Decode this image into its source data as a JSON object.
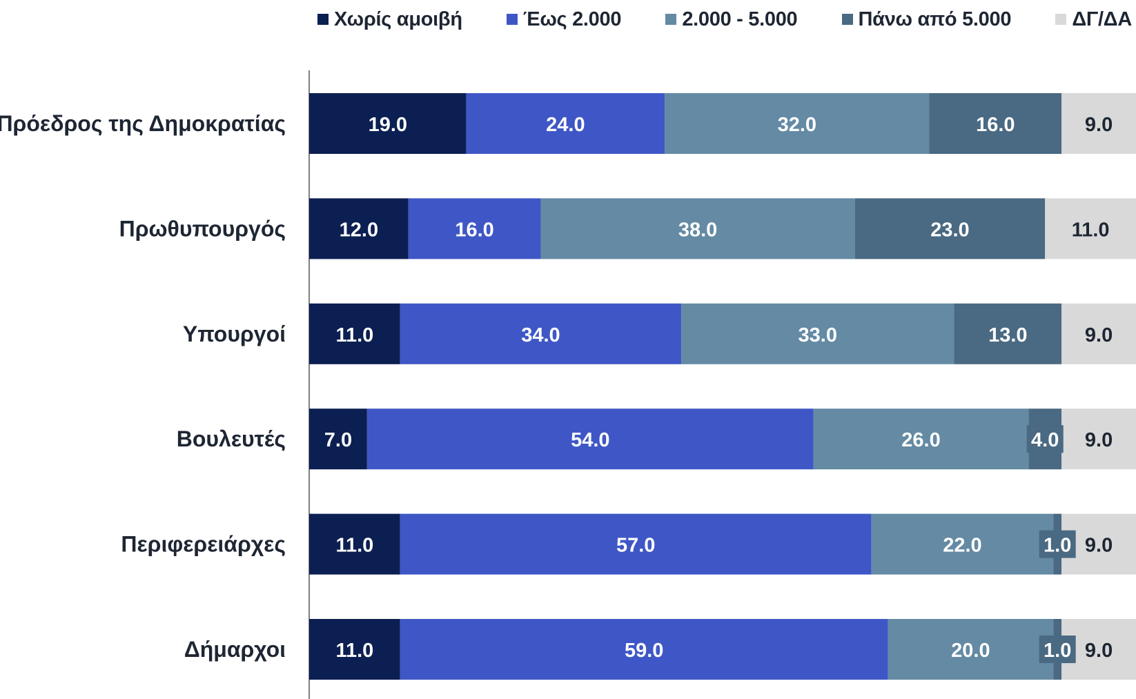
{
  "chart_data": {
    "type": "bar",
    "orientation": "horizontal",
    "stacked": true,
    "categories": [
      "Πρόεδρος της Δημοκρατίας",
      "Πρωθυπουργός",
      "Υπουργοί",
      "Βουλευτές",
      "Περιφερειάρχες",
      "Δήμαρχοι"
    ],
    "series": [
      {
        "name": "Χωρίς αμοιβή",
        "color": "#0c1f52",
        "label_color": "#ffffff",
        "values": [
          19.0,
          12.0,
          11.0,
          7.0,
          11.0,
          11.0
        ]
      },
      {
        "name": "Έως 2.000",
        "color": "#3f57c6",
        "label_color": "#ffffff",
        "values": [
          24.0,
          16.0,
          34.0,
          54.0,
          57.0,
          59.0
        ]
      },
      {
        "name": "2.000 - 5.000",
        "color": "#648aa4",
        "label_color": "#ffffff",
        "values": [
          32.0,
          38.0,
          33.0,
          26.0,
          22.0,
          20.0
        ]
      },
      {
        "name": "Πάνω από 5.000",
        "color": "#4a6982",
        "label_color": "#ffffff",
        "values": [
          16.0,
          23.0,
          13.0,
          4.0,
          1.0,
          1.0
        ]
      },
      {
        "name": "ΔΓ/ΔΑ",
        "color": "#d9d9d9",
        "label_color": "#1e2633",
        "values": [
          9.0,
          11.0,
          9.0,
          9.0,
          9.0,
          9.0
        ]
      }
    ],
    "xlim": [
      0,
      100
    ],
    "legend_position": "top",
    "grid": false,
    "title": "",
    "xlabel": "",
    "ylabel": ""
  }
}
